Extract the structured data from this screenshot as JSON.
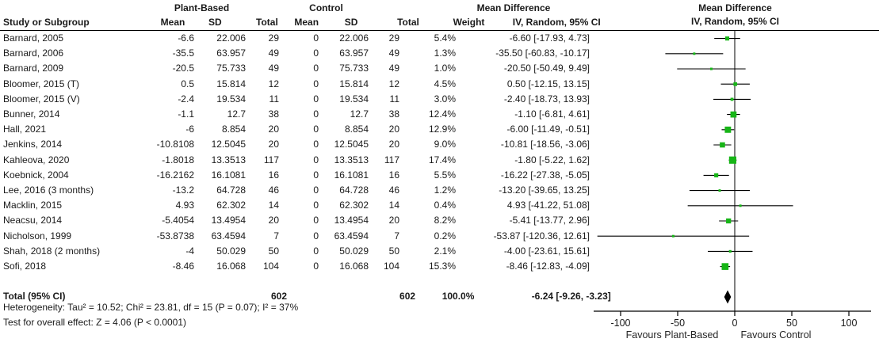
{
  "table": {
    "group_headers": {
      "plant": "Plant-Based",
      "control": "Control",
      "md_left": "Mean Difference",
      "md_right": "Mean Difference"
    },
    "columns": {
      "study": "Study or Subgroup",
      "p_mean": "Mean",
      "p_sd": "SD",
      "p_total": "Total",
      "c_mean": "Mean",
      "c_sd": "SD",
      "c_total": "Total",
      "weight": "Weight",
      "ci": "IV, Random, 95% CI",
      "ci_plot": "IV, Random, 95% CI"
    }
  },
  "chart_data": {
    "type": "forest",
    "title": "Mean Difference, IV, Random, 95% CI",
    "x_axis": {
      "ticks": [
        -100,
        -50,
        0,
        50,
        100
      ],
      "xlim": [
        -123,
        121
      ],
      "favours_left": "Favours Plant-Based",
      "favours_right": "Favours Control"
    },
    "studies": [
      {
        "name": "Barnard, 2005",
        "p_mean": "-6.6",
        "p_sd": "22.006",
        "p_total": "29",
        "c_mean": "0",
        "c_sd": "22.006",
        "c_total": "29",
        "weight": "5.4%",
        "md": -6.6,
        "ci_low": -17.93,
        "ci_high": 4.73,
        "ci_label": "-6.60 [-17.93, 4.73]"
      },
      {
        "name": "Barnard, 2006",
        "p_mean": "-35.5",
        "p_sd": "63.957",
        "p_total": "49",
        "c_mean": "0",
        "c_sd": "63.957",
        "c_total": "49",
        "weight": "1.3%",
        "md": -35.5,
        "ci_low": -60.83,
        "ci_high": -10.17,
        "ci_label": "-35.50 [-60.83, -10.17]"
      },
      {
        "name": "Barnard, 2009",
        "p_mean": "-20.5",
        "p_sd": "75.733",
        "p_total": "49",
        "c_mean": "0",
        "c_sd": "75.733",
        "c_total": "49",
        "weight": "1.0%",
        "md": -20.5,
        "ci_low": -50.49,
        "ci_high": 9.49,
        "ci_label": "-20.50 [-50.49, 9.49]"
      },
      {
        "name": "Bloomer, 2015 (T)",
        "p_mean": "0.5",
        "p_sd": "15.814",
        "p_total": "12",
        "c_mean": "0",
        "c_sd": "15.814",
        "c_total": "12",
        "weight": "4.5%",
        "md": 0.5,
        "ci_low": -12.15,
        "ci_high": 13.15,
        "ci_label": "0.50 [-12.15, 13.15]"
      },
      {
        "name": "Bloomer, 2015 (V)",
        "p_mean": "-2.4",
        "p_sd": "19.534",
        "p_total": "11",
        "c_mean": "0",
        "c_sd": "19.534",
        "c_total": "11",
        "weight": "3.0%",
        "md": -2.4,
        "ci_low": -18.73,
        "ci_high": 13.93,
        "ci_label": "-2.40 [-18.73, 13.93]"
      },
      {
        "name": "Bunner, 2014",
        "p_mean": "-1.1",
        "p_sd": "12.7",
        "p_total": "38",
        "c_mean": "0",
        "c_sd": "12.7",
        "c_total": "38",
        "weight": "12.4%",
        "md": -1.1,
        "ci_low": -6.81,
        "ci_high": 4.61,
        "ci_label": "-1.10 [-6.81, 4.61]"
      },
      {
        "name": "Hall, 2021",
        "p_mean": "-6",
        "p_sd": "8.854",
        "p_total": "20",
        "c_mean": "0",
        "c_sd": "8.854",
        "c_total": "20",
        "weight": "12.9%",
        "md": -6.0,
        "ci_low": -11.49,
        "ci_high": -0.51,
        "ci_label": "-6.00 [-11.49, -0.51]"
      },
      {
        "name": "Jenkins, 2014",
        "p_mean": "-10.8108",
        "p_sd": "12.5045",
        "p_total": "20",
        "c_mean": "0",
        "c_sd": "12.5045",
        "c_total": "20",
        "weight": "9.0%",
        "md": -10.81,
        "ci_low": -18.56,
        "ci_high": -3.06,
        "ci_label": "-10.81 [-18.56, -3.06]"
      },
      {
        "name": "Kahleova, 2020",
        "p_mean": "-1.8018",
        "p_sd": "13.3513",
        "p_total": "117",
        "c_mean": "0",
        "c_sd": "13.3513",
        "c_total": "117",
        "weight": "17.4%",
        "md": -1.8,
        "ci_low": -5.22,
        "ci_high": 1.62,
        "ci_label": "-1.80 [-5.22, 1.62]"
      },
      {
        "name": "Koebnick, 2004",
        "p_mean": "-16.2162",
        "p_sd": "16.1081",
        "p_total": "16",
        "c_mean": "0",
        "c_sd": "16.1081",
        "c_total": "16",
        "weight": "5.5%",
        "md": -16.22,
        "ci_low": -27.38,
        "ci_high": -5.05,
        "ci_label": "-16.22 [-27.38, -5.05]"
      },
      {
        "name": "Lee, 2016 (3 months)",
        "p_mean": "-13.2",
        "p_sd": "64.728",
        "p_total": "46",
        "c_mean": "0",
        "c_sd": "64.728",
        "c_total": "46",
        "weight": "1.2%",
        "md": -13.2,
        "ci_low": -39.65,
        "ci_high": 13.25,
        "ci_label": "-13.20 [-39.65, 13.25]"
      },
      {
        "name": "Macklin, 2015",
        "p_mean": "4.93",
        "p_sd": "62.302",
        "p_total": "14",
        "c_mean": "0",
        "c_sd": "62.302",
        "c_total": "14",
        "weight": "0.4%",
        "md": 4.93,
        "ci_low": -41.22,
        "ci_high": 51.08,
        "ci_label": "4.93 [-41.22, 51.08]"
      },
      {
        "name": "Neacsu, 2014",
        "p_mean": "-5.4054",
        "p_sd": "13.4954",
        "p_total": "20",
        "c_mean": "0",
        "c_sd": "13.4954",
        "c_total": "20",
        "weight": "8.2%",
        "md": -5.41,
        "ci_low": -13.77,
        "ci_high": 2.96,
        "ci_label": "-5.41 [-13.77, 2.96]"
      },
      {
        "name": "Nicholson, 1999",
        "p_mean": "-53.8738",
        "p_sd": "63.4594",
        "p_total": "7",
        "c_mean": "0",
        "c_sd": "63.4594",
        "c_total": "7",
        "weight": "0.2%",
        "md": -53.87,
        "ci_low": -120.36,
        "ci_high": 12.61,
        "ci_label": "-53.87 [-120.36, 12.61]"
      },
      {
        "name": "Shah, 2018 (2 months)",
        "p_mean": "-4",
        "p_sd": "50.029",
        "p_total": "50",
        "c_mean": "0",
        "c_sd": "50.029",
        "c_total": "50",
        "weight": "2.1%",
        "md": -4.0,
        "ci_low": -23.61,
        "ci_high": 15.61,
        "ci_label": "-4.00 [-23.61, 15.61]"
      },
      {
        "name": "Sofi, 2018",
        "p_mean": "-8.46",
        "p_sd": "16.068",
        "p_total": "104",
        "c_mean": "0",
        "c_sd": "16.068",
        "c_total": "104",
        "weight": "15.3%",
        "md": -8.46,
        "ci_low": -12.83,
        "ci_high": -4.09,
        "ci_label": "-8.46 [-12.83, -4.09]"
      }
    ],
    "total": {
      "label": "Total (95% CI)",
      "p_total": "602",
      "c_total": "602",
      "weight": "100.0%",
      "md": -6.24,
      "ci_low": -9.26,
      "ci_high": -3.23,
      "ci_label": "-6.24 [-9.26, -3.23]"
    },
    "footnotes": {
      "heterogeneity": "Heterogeneity: Tau² = 10.52; Chi² = 23.81, df = 15 (P = 0.07); I² = 37%",
      "overall_effect": "Test for overall effect: Z = 4.06 (P < 0.0001)"
    }
  },
  "colors": {
    "marker_green": "#17b517",
    "ci_line": "#000000",
    "zero_line": "#4a4a4a",
    "axis": "#000000",
    "diamond": "#000000"
  }
}
